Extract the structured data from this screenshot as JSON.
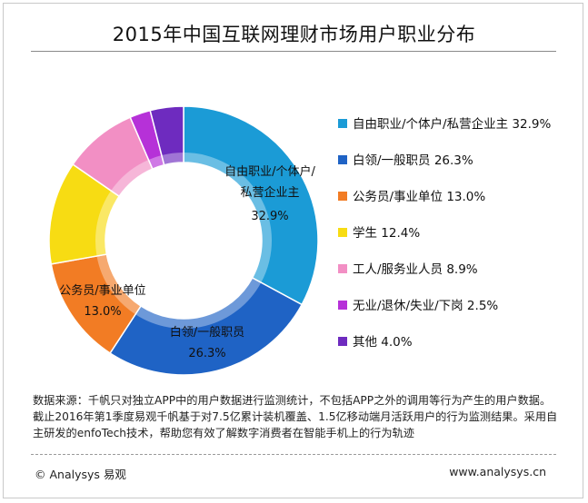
{
  "colors": {
    "self_employed": "#1b9bd6",
    "white_collar": "#1f63c5",
    "civil_servant": "#f27c24",
    "student": "#f7dc13",
    "worker": "#f28fc4",
    "unemployed": "#b631d8",
    "other": "#6e2bbf"
  },
  "chart_data": {
    "type": "pie",
    "title": "2015年中国互联网理财市场用户职业分布",
    "unit": "%",
    "categories": [
      "自由职业/个体户/私营企业主",
      "白领/一般职员",
      "公务员/事业单位",
      "学生",
      "工人/服务业人员",
      "无业/退休/失业/下岗",
      "其他"
    ],
    "values": [
      32.9,
      26.3,
      13.0,
      12.4,
      8.9,
      2.5,
      4.0
    ],
    "legend_position": "right",
    "legend": [
      "自由职业/个体户/私营企业主 32.9%",
      "白领/一般职员 26.3%",
      "公务员/事业单位 13.0%",
      "学生 12.4%",
      "工人/服务业人员 8.9%",
      "无业/退休/失业/下岗 2.5%",
      "其他 4.0%"
    ],
    "slice_labels": {
      "self_employed_line1": "自由职业/个体户/",
      "self_employed_line2": "私营企业主",
      "self_employed_pct": "32.9%",
      "white_collar": "白领/一般职员",
      "white_collar_pct": "26.3%",
      "civil_servant": "公务员/事业单位",
      "civil_servant_pct": "13.0%"
    }
  },
  "footnote": {
    "text": "数据来源：千帆只对独立APP中的用户数据进行监测统计，不包括APP之外的调用等行为产生的用户数据。截止2016年第1季度易观千帆基于对7.5亿累计装机覆盖、1.5亿移动端月活跃用户的行为监测结果。采用自主研发的enfoTech技术，帮助您有效了解数字消费者在智能手机上的行为轨迹"
  },
  "footer": {
    "copyright": "© Analysys 易观",
    "site": "www.analysys.cn"
  }
}
